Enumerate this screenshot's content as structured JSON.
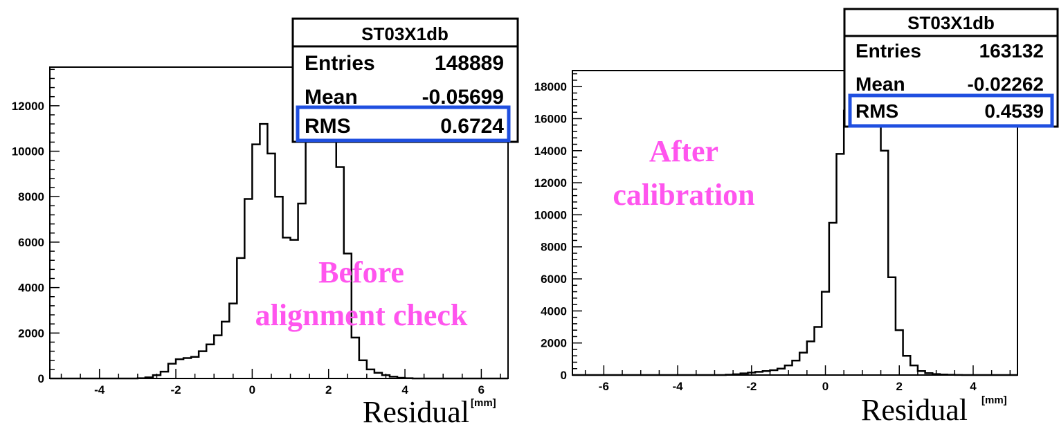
{
  "colors": {
    "annotation": "#ff55ee",
    "highlight": "#1f4fe0",
    "line": "#000000"
  },
  "chart_data": [
    {
      "type": "histogram",
      "name": "ST03X1db",
      "stats": {
        "title": "ST03X1db",
        "rows": [
          {
            "label": "Entries",
            "value": "148889"
          },
          {
            "label": "Mean",
            "value": "-0.05699"
          },
          {
            "label": "RMS",
            "value": "0.6724"
          }
        ],
        "highlighted_row": "RMS"
      },
      "annotation": [
        "Before",
        "alignment check"
      ],
      "xlabel": "Residual",
      "xunit": "[mm]",
      "xlim": [
        -5.3,
        6.7
      ],
      "ylim": [
        0,
        13700
      ],
      "xticks": [
        -4,
        -2,
        0,
        2,
        4,
        6
      ],
      "yticks": [
        0,
        2000,
        4000,
        6000,
        8000,
        10000,
        12000
      ],
      "bin_width": 0.2,
      "x_start": -3.0,
      "values": [
        10,
        50,
        150,
        300,
        650,
        850,
        900,
        950,
        1200,
        1500,
        1900,
        2500,
        3300,
        5300,
        7900,
        10300,
        11200,
        9900,
        8000,
        6200,
        6100,
        7700,
        10500,
        12200,
        12900,
        12100,
        9300,
        5500,
        1800,
        800,
        400,
        250,
        150,
        80,
        30,
        10
      ]
    },
    {
      "type": "histogram",
      "name": "ST03X1db",
      "stats": {
        "title": "ST03X1db",
        "rows": [
          {
            "label": "Entries",
            "value": "163132"
          },
          {
            "label": "Mean",
            "value": "-0.02262"
          },
          {
            "label": "RMS",
            "value": "0.4539"
          }
        ],
        "highlighted_row": "RMS"
      },
      "annotation": [
        "After",
        "calibration"
      ],
      "xlabel": "Residual",
      "xunit": "[mm]",
      "xlim": [
        -6.85,
        5.2
      ],
      "ylim": [
        0,
        19000
      ],
      "xticks": [
        -6,
        -4,
        -2,
        0,
        2,
        4
      ],
      "yticks": [
        0,
        2000,
        4000,
        6000,
        8000,
        10000,
        12000,
        14000,
        16000,
        18000
      ],
      "bin_width": 0.2,
      "x_start": -2.7,
      "values": [
        20,
        50,
        100,
        150,
        200,
        250,
        300,
        400,
        600,
        900,
        1400,
        2100,
        3000,
        5200,
        9500,
        13800,
        16500,
        17300,
        17800,
        17700,
        16500,
        14000,
        6100,
        2800,
        1200,
        600,
        250,
        120,
        60,
        30,
        15,
        5
      ]
    }
  ]
}
